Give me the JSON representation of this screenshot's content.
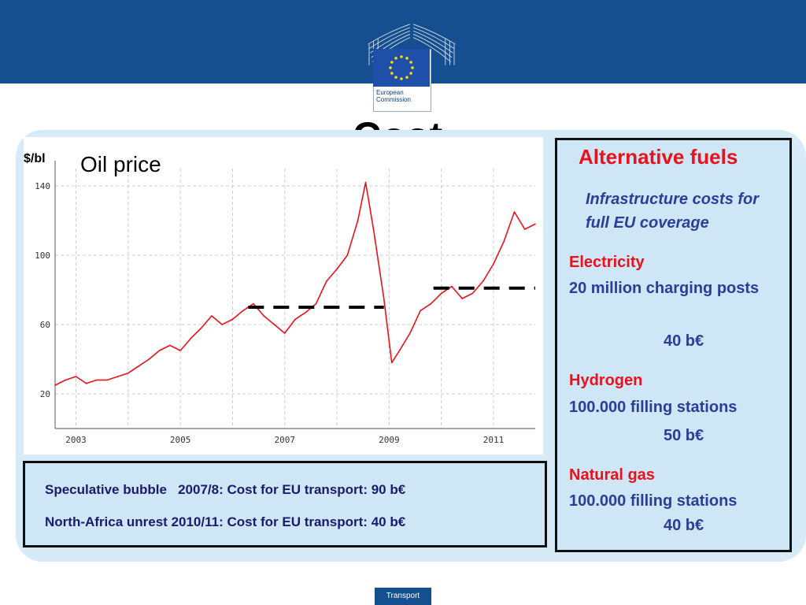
{
  "slide": {
    "title": "Cost",
    "footer_label": "Transport",
    "logo": {
      "line1": "European",
      "line2": "Commission"
    }
  },
  "chart_data": {
    "type": "line",
    "title": "Oil price",
    "ylabel": "$/bl",
    "xlabel": "",
    "x_ticks": [
      "2003",
      "2005",
      "2007",
      "2009",
      "2011"
    ],
    "y_ticks": [
      20,
      60,
      100,
      140
    ],
    "xlim": [
      2002.6,
      2011.8
    ],
    "ylim": [
      0,
      150
    ],
    "grid": true,
    "series": [
      {
        "color": "#e8121c",
        "x": [
          2002.6,
          2002.8,
          2003.0,
          2003.2,
          2003.4,
          2003.6,
          2003.8,
          2004.0,
          2004.2,
          2004.4,
          2004.6,
          2004.8,
          2005.0,
          2005.2,
          2005.4,
          2005.6,
          2005.8,
          2006.0,
          2006.2,
          2006.4,
          2006.6,
          2006.8,
          2007.0,
          2007.2,
          2007.4,
          2007.6,
          2007.8,
          2008.0,
          2008.2,
          2008.4,
          2008.55,
          2008.7,
          2008.9,
          2009.05,
          2009.2,
          2009.4,
          2009.6,
          2009.8,
          2010.0,
          2010.2,
          2010.4,
          2010.6,
          2010.8,
          2011.0,
          2011.2,
          2011.4,
          2011.6,
          2011.8
        ],
        "y": [
          25,
          28,
          30,
          26,
          28,
          28,
          30,
          32,
          36,
          40,
          45,
          48,
          45,
          52,
          58,
          65,
          60,
          63,
          68,
          72,
          65,
          60,
          55,
          63,
          67,
          72,
          85,
          92,
          100,
          120,
          142,
          115,
          75,
          38,
          45,
          55,
          68,
          72,
          78,
          82,
          75,
          78,
          85,
          95,
          108,
          125,
          115,
          118
        ]
      }
    ],
    "annotations": [
      {
        "type": "dashed-line",
        "x": [
          2006.3,
          2008.9
        ],
        "y": 70
      },
      {
        "type": "dashed-line",
        "x": [
          2009.85,
          2011.8
        ],
        "y": 81
      }
    ]
  },
  "bubble": {
    "line1": "Speculative bubble   2007/8: Cost for EU transport: 90 b€",
    "line2": "North-Africa unrest 2010/11: Cost for EU transport: 40 b€"
  },
  "alternative_fuels": {
    "title": "Alternative fuels",
    "subtitle": "Infrastructure costs for full EU coverage",
    "sections": [
      {
        "heading": "Electricity",
        "text": "20 million charging posts",
        "value": "40 b€"
      },
      {
        "heading": "Hydrogen",
        "text": "100.000 filling stations",
        "value": "50 b€"
      },
      {
        "heading": "Natural gas",
        "text": "100.000 filling stations",
        "value": "40 b€"
      }
    ]
  }
}
